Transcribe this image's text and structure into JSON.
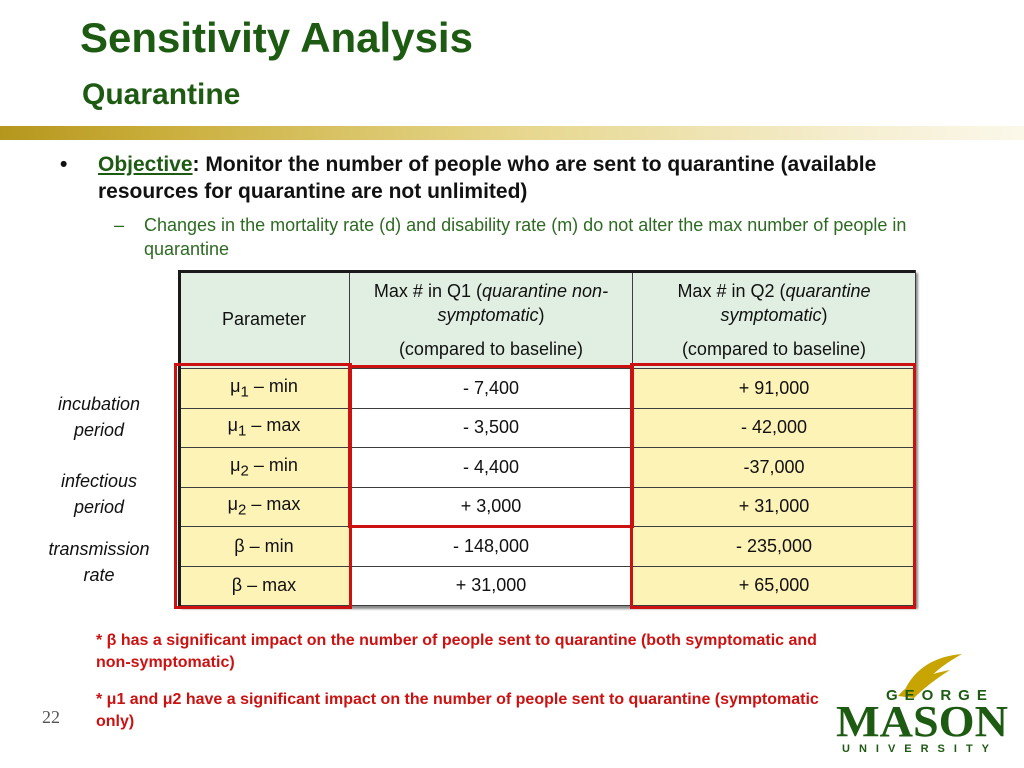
{
  "title": "Sensitivity Analysis",
  "subtitle": "Quarantine",
  "bullet": {
    "marker": "•",
    "objective_label": "Objective",
    "text": ":  Monitor the number of people who are sent to quarantine (available resources for quarantine are not unlimited)"
  },
  "sub_bullet": {
    "marker": "–",
    "text": "Changes in the mortality rate (d) and disability rate (m) do not alter the max number of people in quarantine"
  },
  "table": {
    "header": {
      "parameter": "Parameter",
      "q1": {
        "prefix": "Max # in Q1 (",
        "italic": "quarantine non-symptomatic",
        "suffix": ")",
        "line2": "(compared to baseline)"
      },
      "q2": {
        "prefix": "Max # in Q2 (",
        "italic": "quarantine symptomatic",
        "suffix": ")",
        "line2": "(compared to baseline)"
      }
    },
    "rows": [
      {
        "symbol": "μ",
        "subscript": "1",
        "rest": " – min",
        "q1": "- 7,400",
        "q2": "+ 91,000"
      },
      {
        "symbol": "μ",
        "subscript": "1",
        "rest": " – max",
        "q1": "- 3,500",
        "q2": "- 42,000"
      },
      {
        "symbol": "μ",
        "subscript": "2",
        "rest": " – min",
        "q1": "- 4,400",
        "q2": "-37,000"
      },
      {
        "symbol": "μ",
        "subscript": "2",
        "rest": " – max",
        "q1": "+ 3,000",
        "q2": "+ 31,000"
      },
      {
        "symbol": "β",
        "subscript": "",
        "rest": " – min",
        "q1": "- 148,000",
        "q2": "- 235,000"
      },
      {
        "symbol": "β",
        "subscript": "",
        "rest": " – max",
        "q1": "+ 31,000",
        "q2": "+ 65,000"
      }
    ]
  },
  "row_labels": {
    "incubation": [
      "incubation",
      "period"
    ],
    "infectious": [
      "infectious",
      "period"
    ],
    "transmission": [
      "transmission",
      "rate"
    ]
  },
  "notes": [
    "* β has a significant impact on the number of people sent to quarantine (both symptomatic and non-symptomatic)",
    "* μ1 and μ2 have a significant impact on the number of people sent to quarantine (symptomatic only)"
  ],
  "page_number": "22",
  "logo": {
    "text_top": "GEORGE",
    "text_main": "MASON",
    "text_bottom": "UNIVERSITY"
  },
  "colors": {
    "title_green": "#1d5a12",
    "header_fill": "#e1efe2",
    "cell_yellow": "#fdf3b7",
    "highlight_red": "#cc1111",
    "logo_gold": "#c8a400"
  }
}
